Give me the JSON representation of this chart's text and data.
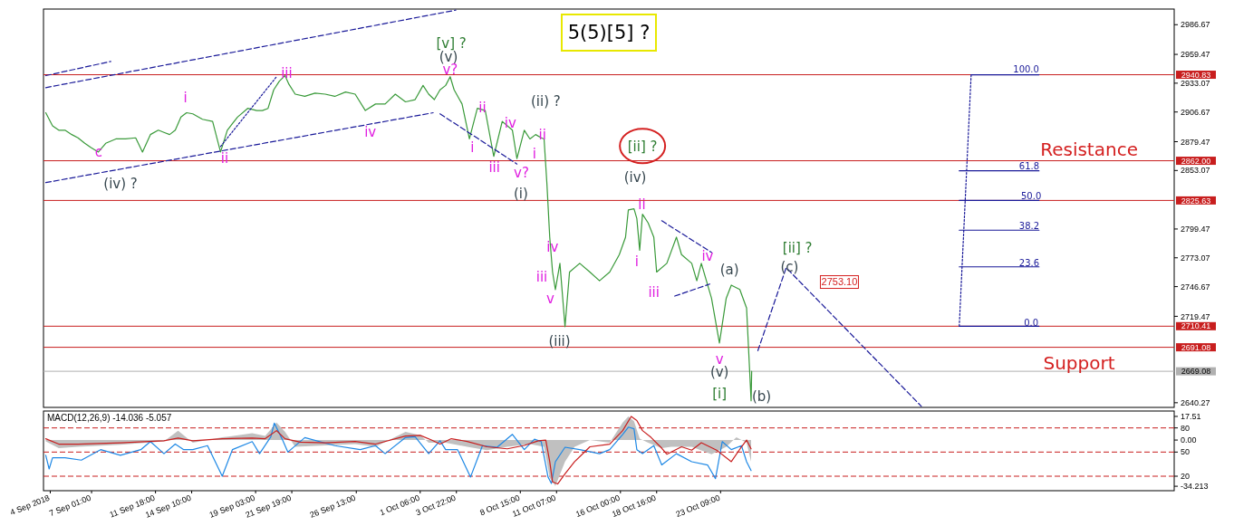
{
  "chart_data": [
    {
      "type": "line",
      "title": "5(5)[5] ?",
      "xlim": [
        "2018-09-03T12:00",
        "2018-11-25T19:00"
      ],
      "ylim": [
        2636,
        3001
      ],
      "tick_labels": "y",
      "yticks": [
        2986.67,
        2959.47,
        2933.07,
        2906.67,
        2879.47,
        2853.07,
        2799.47,
        2773.07,
        2746.67,
        2719.47,
        2640.27
      ],
      "series": [
        {
          "color": "#3a9a3a",
          "x": [
            "2018-09-03T16:00",
            "2018-09-04T04:00",
            "2018-09-04T15:00",
            "2018-09-05T02:00",
            "2018-09-05T14:00",
            "2018-09-06T01:00",
            "2018-09-06T13:00",
            "2018-09-07T00:00",
            "2018-09-07T13:00",
            "2018-09-08T02:00",
            "2018-09-08T20:00",
            "2018-09-09T13:00",
            "2018-09-10T07:00",
            "2018-09-10T19:00",
            "2018-09-11T09:00",
            "2018-09-11T23:00",
            "2018-09-12T09:00",
            "2018-09-12T19:00",
            "2018-09-13T05:00",
            "2018-09-13T15:00",
            "2018-09-14T01:00",
            "2018-09-14T12:00",
            "2018-09-15T05:00",
            "2018-09-15T23:00",
            "2018-09-16T13:00",
            "2018-09-17T01:00",
            "2018-09-17T19:00",
            "2018-09-18T13:00",
            "2018-09-19T05:00",
            "2018-09-19T15:00",
            "2018-09-20T01:00",
            "2018-09-20T11:00",
            "2018-09-20T21:00",
            "2018-09-21T07:00",
            "2018-09-21T14:00",
            "2018-09-22T01:00",
            "2018-09-22T18:00",
            "2018-09-23T12:00",
            "2018-09-24T06:00",
            "2018-09-24T23:00",
            "2018-09-25T18:00",
            "2018-09-26T11:00",
            "2018-09-27T05:00",
            "2018-09-27T23:00",
            "2018-09-28T16:00",
            "2018-09-29T10:00",
            "2018-09-30T04:00",
            "2018-09-30T21:00",
            "2018-10-01T11:00",
            "2018-10-01T21:00",
            "2018-10-02T07:00",
            "2018-10-02T17:00",
            "2018-10-03T03:00",
            "2018-10-03T11:00",
            "2018-10-03T18:00",
            "2018-10-04T08:00",
            "2018-10-04T21:00",
            "2018-10-05T11:00",
            "2018-10-06T01:00",
            "2018-10-06T16:00",
            "2018-10-07T07:00",
            "2018-10-08T01:00",
            "2018-10-08T09:00",
            "2018-10-08T22:00",
            "2018-10-09T08:00",
            "2018-10-09T18:00",
            "2018-10-10T04:00",
            "2018-10-10T09:00",
            "2018-10-10T14:00",
            "2018-10-10T19:00",
            "2018-10-11T00:00",
            "2018-10-11T05:00",
            "2018-10-11T13:00",
            "2018-10-11T22:00",
            "2018-10-12T06:00",
            "2018-10-13T00:00",
            "2018-10-13T18:00",
            "2018-10-14T11:00",
            "2018-10-15T05:00",
            "2018-10-15T22:00",
            "2018-10-16T09:00",
            "2018-10-16T14:00",
            "2018-10-17T00:00",
            "2018-10-17T05:00",
            "2018-10-17T10:00",
            "2018-10-17T15:00",
            "2018-10-18T01:00",
            "2018-10-18T11:00",
            "2018-10-18T16:00",
            "2018-10-19T10:00",
            "2018-10-20T03:00",
            "2018-10-20T12:00",
            "2018-10-21T06:00",
            "2018-10-21T15:00",
            "2018-10-21T23:00",
            "2018-10-22T17:00",
            "2018-10-23T07:00",
            "2018-10-23T19:00",
            "2018-10-24T04:00",
            "2018-10-24T19:00",
            "2018-10-25T07:00",
            "2018-10-25T15:00",
            "2018-10-25T16:00"
          ],
          "values": [
            2906,
            2894,
            2890,
            2890,
            2886,
            2883,
            2878,
            2874,
            2870,
            2878,
            2882,
            2882,
            2883,
            2870,
            2886,
            2890,
            2888,
            2886,
            2890,
            2902,
            2906,
            2905,
            2900,
            2898,
            2870,
            2890,
            2902,
            2910,
            2908,
            2908,
            2910,
            2927,
            2935,
            2940,
            2932,
            2923,
            2921,
            2924,
            2923,
            2921,
            2925,
            2923,
            2908,
            2914,
            2914,
            2923,
            2916,
            2918,
            2931,
            2923,
            2918,
            2927,
            2931,
            2939,
            2927,
            2914,
            2882,
            2910,
            2908,
            2866,
            2898,
            2890,
            2864,
            2890,
            2882,
            2886,
            2883,
            2882,
            2841,
            2792,
            2760,
            2744,
            2768,
            2710,
            2760,
            2768,
            2760,
            2752,
            2760,
            2776,
            2792,
            2817,
            2818,
            2809,
            2780,
            2813,
            2805,
            2792,
            2760,
            2768,
            2792,
            2776,
            2768,
            2752,
            2768,
            2736,
            2695,
            2736,
            2748,
            2744,
            2727,
            2642,
            2669
          ]
        },
        {
          "color": "#1a1a99",
          "line_style": "dashed",
          "x": [
            "2018-09-03T16:00",
            "2018-10-03T21:00"
          ],
          "values": [
            2929,
            3000
          ]
        },
        {
          "color": "#1a1a99",
          "line_style": "dashed",
          "x": [
            "2018-09-03T16:00",
            "2018-09-08T11:00"
          ],
          "values": [
            2940,
            2953
          ]
        },
        {
          "color": "#1a1a99",
          "line_style": "dashed",
          "x": [
            "2018-09-03T16:00",
            "2018-10-02T05:00"
          ],
          "values": [
            2842,
            2906
          ]
        },
        {
          "color": "#1a1a99",
          "line_style": "dotted",
          "x": [
            "2018-09-16T13:00",
            "2018-09-20T16:00"
          ],
          "values": [
            2875,
            2939
          ]
        },
        {
          "color": "#1a1a99",
          "line_style": "dashed",
          "x": [
            "2018-10-02T17:00",
            "2018-10-08T09:00"
          ],
          "values": [
            2905,
            2859
          ]
        },
        {
          "color": "#1a1a99",
          "line_style": "dashed",
          "x": [
            "2018-10-19T01:00",
            "2018-10-22T17:00"
          ],
          "values": [
            2807,
            2778
          ]
        },
        {
          "color": "#1a1a99",
          "line_style": "dashed",
          "x": [
            "2018-10-20T00:00",
            "2018-10-22T14:00"
          ],
          "values": [
            2738,
            2749
          ]
        },
        {
          "color": "#1a1a99",
          "line_style": "dashed",
          "x": [
            "2018-10-26T03:00",
            "2018-10-28T05:00",
            "2018-11-07T04:00"
          ],
          "values": [
            2688,
            2764,
            2637
          ]
        },
        {
          "color": "#1a1a99",
          "line_style": "dotted",
          "x": [
            "2018-11-09T23:00",
            "2018-11-10T20:00"
          ],
          "values": [
            2710.41,
            2940.83
          ]
        },
        {
          "color": "#1a1a99",
          "x": [
            "2018-11-10T20:00",
            "2018-11-15T20:00"
          ],
          "values": [
            2940.83,
            2940.83
          ]
        },
        {
          "color": "#1a1a99",
          "x": [
            "2018-11-09T23:00",
            "2018-11-15T20:00"
          ],
          "values": [
            2852.8,
            2852.8
          ]
        },
        {
          "color": "#1a1a99",
          "x": [
            "2018-11-09T23:00",
            "2018-11-15T20:00"
          ],
          "values": [
            2825.63,
            2825.63
          ]
        },
        {
          "color": "#1a1a99",
          "x": [
            "2018-11-09T23:00",
            "2018-11-15T20:00"
          ],
          "values": [
            2798.4,
            2798.4
          ]
        },
        {
          "color": "#1a1a99",
          "x": [
            "2018-11-09T23:00",
            "2018-11-15T20:00"
          ],
          "values": [
            2764.8,
            2764.8
          ]
        },
        {
          "color": "#1a1a99",
          "x": [
            "2018-11-09T23:00",
            "2018-11-15T20:00"
          ],
          "values": [
            2710.41,
            2710.41
          ]
        }
      ],
      "ref_lines": [
        {
          "axis": "y",
          "value": 2940.83,
          "label": "2940.83",
          "color": "#c81e1e"
        },
        {
          "axis": "y",
          "value": 2862.0,
          "label": "2862.00",
          "color": "#c81e1e"
        },
        {
          "axis": "y",
          "value": 2825.63,
          "label": "2825.63",
          "color": "#c81e1e"
        },
        {
          "axis": "y",
          "value": 2710.41,
          "label": "2710.41",
          "color": "#c81e1e"
        },
        {
          "axis": "y",
          "value": 2691.08,
          "label": "2691.08",
          "color": "#c81e1e"
        },
        {
          "axis": "y",
          "value": 2669.08,
          "label": "2669.08",
          "color": "#b0b0b0"
        }
      ],
      "annotations": [
        "c",
        "(iv) ?",
        "i",
        "ii",
        "iii",
        "iv",
        "[v] ?",
        "(v)",
        "v?",
        "ii",
        "i",
        "iv",
        "iii",
        "v?",
        "(i)",
        "(ii) ?",
        "ii",
        "i",
        "iv",
        "iii",
        "v",
        "(iii)",
        "[ii] ?",
        "(iv)",
        "ii",
        "i",
        "iii",
        "iv",
        "(a)",
        "v",
        "(v)",
        "[i]",
        "(b)",
        "[ii] ?",
        "(c)",
        "2753.10",
        "Resistance",
        "Support",
        "100.0",
        "61.8",
        "50.0",
        "38.2",
        "23.6",
        "0.0"
      ]
    },
    {
      "type": "line",
      "title": "MACD(12,26,9) -14.036 -5.057",
      "xlim": [
        "2018-09-03T12:00",
        "2018-11-25T19:00"
      ],
      "ylim": [
        -37.5,
        21.5
      ],
      "y2lim": [
        2,
        101
      ],
      "xticks": [
        {
          "value": "2018-09-04T00:00",
          "label": "4 Sep 2018"
        },
        {
          "value": "2018-09-07T01:00",
          "label": "7 Sep 01:00"
        },
        {
          "value": "2018-09-11T18:00",
          "label": "11 Sep 18:00"
        },
        {
          "value": "2018-09-14T10:00",
          "label": "14 Sep 10:00"
        },
        {
          "value": "2018-09-19T03:00",
          "label": "19 Sep 03:00"
        },
        {
          "value": "2018-09-21T19:00",
          "label": "21 Sep 19:00"
        },
        {
          "value": "2018-09-26T13:00",
          "label": "26 Sep 13:00"
        },
        {
          "value": "2018-10-01T06:00",
          "label": "1 Oct 06:00"
        },
        {
          "value": "2018-10-03T22:00",
          "label": "3 Oct 22:00"
        },
        {
          "value": "2018-10-08T15:00",
          "label": "8 Oct 15:00"
        },
        {
          "value": "2018-10-11T07:00",
          "label": "11 Oct 07:00"
        },
        {
          "value": "2018-10-16T00:00",
          "label": "16 Oct 00:00"
        },
        {
          "value": "2018-10-18T16:00",
          "label": "18 Oct 16:00"
        },
        {
          "value": "2018-10-23T09:00",
          "label": "23 Oct 09:00"
        }
      ],
      "yticks": [
        17.51,
        {
          "value": 0,
          "label": "0.00"
        },
        -34.213
      ],
      "y2ticks": [
        80,
        50,
        20
      ],
      "ref_lines": [
        {
          "axis": "y2",
          "value": 80,
          "color": "#c81e1e",
          "line_style": "dashed"
        },
        {
          "axis": "y2",
          "value": 50,
          "color": "#c81e1e",
          "line_style": "dashed"
        },
        {
          "axis": "y2",
          "value": 20,
          "color": "#c81e1e",
          "line_style": "dashed"
        }
      ],
      "series": [
        {
          "type": "area",
          "color": "#c0c0c0",
          "x": [
            "2018-09-03T16:00",
            "2018-09-04T15:00",
            "2018-09-06T01:00",
            "2018-09-09T04:00",
            "2018-09-12T09:00",
            "2018-09-13T10:00",
            "2018-09-14T12:00",
            "2018-09-16T16:00",
            "2018-09-18T21:00",
            "2018-09-19T20:00",
            "2018-09-20T16:00",
            "2018-09-21T07:00",
            "2018-09-22T01:00",
            "2018-09-24T06:00",
            "2018-09-26T11:00",
            "2018-09-27T23:00",
            "2018-09-30T04:00",
            "2018-10-01T06:00",
            "2018-10-01T21:00",
            "2018-10-03T03:00",
            "2018-10-04T17:00",
            "2018-10-06T04:00",
            "2018-10-07T16:00",
            "2018-10-09T08:00",
            "2018-10-10T09:00",
            "2018-10-10T19:00",
            "2018-10-11T05:00",
            "2018-10-11T22:00",
            "2018-10-12T15:00",
            "2018-10-13T18:00",
            "2018-10-15T05:00",
            "2018-10-16T04:00",
            "2018-10-16T14:00",
            "2018-10-17T00:00",
            "2018-10-17T10:00",
            "2018-10-18T01:00",
            "2018-10-19T01:00",
            "2018-10-19T18:00",
            "2018-10-21T06:00",
            "2018-10-22T17:00",
            "2018-10-23T19:00",
            "2018-10-24T13:00",
            "2018-10-25T07:00",
            "2018-10-25T15:00"
          ],
          "values": [
            -1,
            -6,
            -5,
            -3.5,
            -1,
            7,
            -2,
            2,
            5,
            3,
            13,
            6,
            -5,
            -4,
            -3,
            -5,
            6,
            3.5,
            -2,
            -2,
            -5,
            -7.5,
            -5,
            -3,
            -5,
            -28,
            -34,
            -16,
            -5,
            0,
            -2,
            13,
            17.5,
            14,
            1,
            -2,
            -6,
            -5,
            -5,
            -10.5,
            -5,
            2,
            -2,
            -16
          ]
        },
        {
          "color": "#1e88e5",
          "axis": "y2",
          "x": [
            "2018-09-03T16:00",
            "2018-09-03T22:00",
            "2018-09-04T04:00",
            "2018-09-05T02:00",
            "2018-09-06T07:00",
            "2018-09-07T17:00",
            "2018-09-09T04:00",
            "2018-09-10T16:00",
            "2018-09-11T09:00",
            "2018-09-12T09:00",
            "2018-09-13T05:00",
            "2018-09-13T20:00",
            "2018-09-14T12:00",
            "2018-09-15T14:00",
            "2018-09-16T16:00",
            "2018-09-17T10:00",
            "2018-09-18T21:00",
            "2018-09-19T10:00",
            "2018-09-20T06:00",
            "2018-09-20T12:00",
            "2018-09-21T02:00",
            "2018-09-21T12:00",
            "2018-09-22T18:00",
            "2018-09-24T23:00",
            "2018-09-26T20:00",
            "2018-09-27T23:00",
            "2018-09-28T16:00",
            "2018-09-30T04:00",
            "2018-09-30T21:00",
            "2018-10-01T21:00",
            "2018-10-02T17:00",
            "2018-10-03T03:00",
            "2018-10-04T00:00",
            "2018-10-04T23:00",
            "2018-10-05T20:00",
            "2018-10-06T22:00",
            "2018-10-08T01:00",
            "2018-10-08T22:00",
            "2018-10-09T16:00",
            "2018-10-10T04:00",
            "2018-10-10T16:00",
            "2018-10-10T22:00",
            "2018-10-11T05:00",
            "2018-10-11T22:00",
            "2018-10-13T00:00",
            "2018-10-14T11:00",
            "2018-10-15T05:00",
            "2018-10-16T04:00",
            "2018-10-16T14:00",
            "2018-10-17T00:00",
            "2018-10-17T05:00",
            "2018-10-17T15:00",
            "2018-10-18T11:00",
            "2018-10-19T01:00",
            "2018-10-20T03:00",
            "2018-10-21T06:00",
            "2018-10-22T10:00",
            "2018-10-23T00:00",
            "2018-10-23T12:00",
            "2018-10-24T04:00",
            "2018-10-24T22:00",
            "2018-10-25T07:00",
            "2018-10-25T15:00"
          ],
          "values": [
            46,
            29,
            43,
            43,
            40,
            53,
            46,
            53,
            63,
            48,
            60,
            53,
            53,
            58,
            20,
            53,
            63,
            48,
            69,
            86,
            66,
            50,
            68,
            58,
            53,
            58,
            48,
            68,
            69,
            48,
            64,
            53,
            53,
            19,
            58,
            56,
            72,
            53,
            66,
            63,
            19,
            11,
            38,
            56,
            53,
            48,
            53,
            72,
            81,
            79,
            53,
            48,
            58,
            34,
            48,
            38,
            34,
            17,
            63,
            53,
            58,
            38,
            27
          ]
        },
        {
          "color": "#c81e1e",
          "x": [
            "2018-09-03T16:00",
            "2018-09-04T15:00",
            "2018-09-06T01:00",
            "2018-09-09T04:00",
            "2018-09-12T09:00",
            "2018-09-13T10:00",
            "2018-09-14T12:00",
            "2018-09-16T16:00",
            "2018-09-18T21:00",
            "2018-09-19T20:00",
            "2018-09-20T16:00",
            "2018-09-21T07:00",
            "2018-09-22T10:00",
            "2018-09-24T06:00",
            "2018-09-26T11:00",
            "2018-09-27T23:00",
            "2018-09-30T04:00",
            "2018-10-01T06:00",
            "2018-10-02T02:00",
            "2018-10-02T17:00",
            "2018-10-03T13:00",
            "2018-10-04T17:00",
            "2018-10-06T04:00",
            "2018-10-07T16:00",
            "2018-10-08T22:00",
            "2018-10-09T23:00",
            "2018-10-10T12:00",
            "2018-10-10T19:00",
            "2018-10-11T00:00",
            "2018-10-11T09:00",
            "2018-10-11T22:00",
            "2018-10-12T15:00",
            "2018-10-13T18:00",
            "2018-10-15T05:00",
            "2018-10-16T04:00",
            "2018-10-16T19:00",
            "2018-10-17T05:00",
            "2018-10-17T15:00",
            "2018-10-18T06:00",
            "2018-10-19T01:00",
            "2018-10-19T10:00",
            "2018-10-20T12:00",
            "2018-10-21T06:00",
            "2018-10-21T23:00",
            "2018-10-23T02:00",
            "2018-10-24T04:00",
            "2018-10-24T22:00",
            "2018-10-25T07:00",
            "2018-10-25T15:00"
          ],
          "values": [
            1,
            -3,
            -3,
            -2,
            -0.5,
            1.5,
            -0.5,
            1,
            1.5,
            1,
            7,
            1,
            -1.5,
            -2,
            -1,
            -3,
            3,
            3.5,
            0,
            -3,
            1,
            -1,
            -5,
            -6.5,
            -4,
            -0.5,
            0,
            -16,
            -31,
            -32.5,
            -25,
            -16,
            -5,
            -3,
            7,
            17.5,
            14.5,
            7,
            2,
            -6,
            -10.5,
            -5,
            -7.5,
            -2,
            -7.5,
            -16,
            -5,
            0,
            -6.5
          ]
        }
      ]
    }
  ]
}
